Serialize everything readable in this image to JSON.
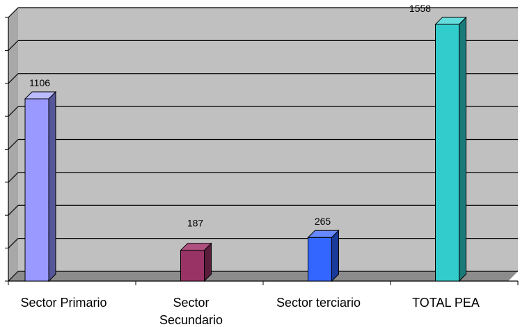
{
  "chart_data": {
    "type": "bar",
    "style": "3d-column",
    "categories": [
      [
        "Sector Primario"
      ],
      [
        "Sector",
        "Secundario"
      ],
      [
        "Sector terciario"
      ],
      [
        "TOTAL PEA"
      ]
    ],
    "values": [
      1106,
      187,
      265,
      1558
    ],
    "data_labels": [
      "1106",
      "187",
      "265",
      "1558"
    ],
    "title": "",
    "xlabel": "",
    "ylabel": "",
    "ylim": [
      0,
      1600
    ],
    "grid": true,
    "legend": "none",
    "colors": {
      "plot_background": "#c0c0c0",
      "gridline": "#000000",
      "bars": [
        "#9999ff",
        "#993366",
        "#3366ff",
        "#33cccc"
      ],
      "bar_sides": [
        "#555599",
        "#5a1e3c",
        "#1a3a99",
        "#1a7a7a"
      ],
      "bar_tops": [
        "#bbbbff",
        "#b05080",
        "#6688ff",
        "#66dddd"
      ]
    }
  }
}
